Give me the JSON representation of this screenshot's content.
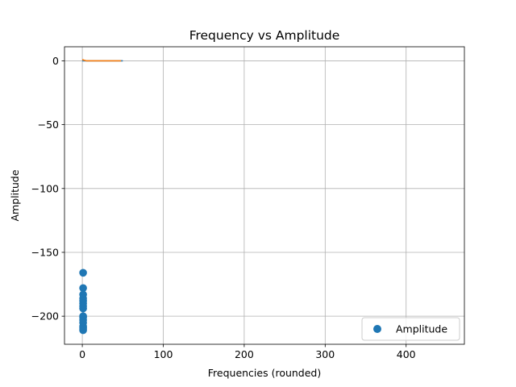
{
  "chart_data": {
    "type": "scatter",
    "title": "Frequency vs Amplitude",
    "xlabel": "Frequencies (rounded)",
    "ylabel": "Amplitude",
    "xlim": [
      -22,
      472
    ],
    "ylim": [
      -222,
      11
    ],
    "xticks": [
      0,
      100,
      200,
      300,
      400
    ],
    "yticks": [
      0,
      -50,
      -100,
      -150,
      -200
    ],
    "xtick_labels": [
      "0",
      "100",
      "200",
      "300",
      "400"
    ],
    "ytick_labels": [
      "0",
      "−50",
      "−100",
      "−150",
      "−200"
    ],
    "grid": true,
    "legend": {
      "placement": "lower-right",
      "entries": [
        "Amplitude"
      ]
    },
    "series": [
      {
        "name": "Amplitude",
        "type": "scatter",
        "color": "#1f77b4",
        "x": [
          1,
          1,
          1,
          1,
          1,
          1,
          1,
          1,
          1,
          1,
          1,
          1,
          1,
          1,
          1,
          1
        ],
        "y": [
          -166,
          -178,
          -183,
          -186,
          -188,
          -190,
          -192,
          -194,
          -200,
          -201,
          -203,
          -205,
          -208,
          -209,
          -210,
          -211
        ]
      },
      {
        "type": "line",
        "color": "#1f77b4",
        "x": [
          0,
          50
        ],
        "y": [
          0,
          0
        ]
      },
      {
        "type": "line",
        "color": "#ff7f0e",
        "x": [
          0,
          1,
          2,
          3,
          4,
          5,
          6,
          8,
          10,
          15,
          20,
          25,
          30,
          35,
          40,
          45,
          48
        ],
        "y": [
          1,
          0.8,
          0.5,
          0.4,
          0.2,
          0,
          0,
          0,
          0,
          0,
          0,
          0,
          0,
          0,
          0,
          0,
          0
        ]
      }
    ]
  }
}
